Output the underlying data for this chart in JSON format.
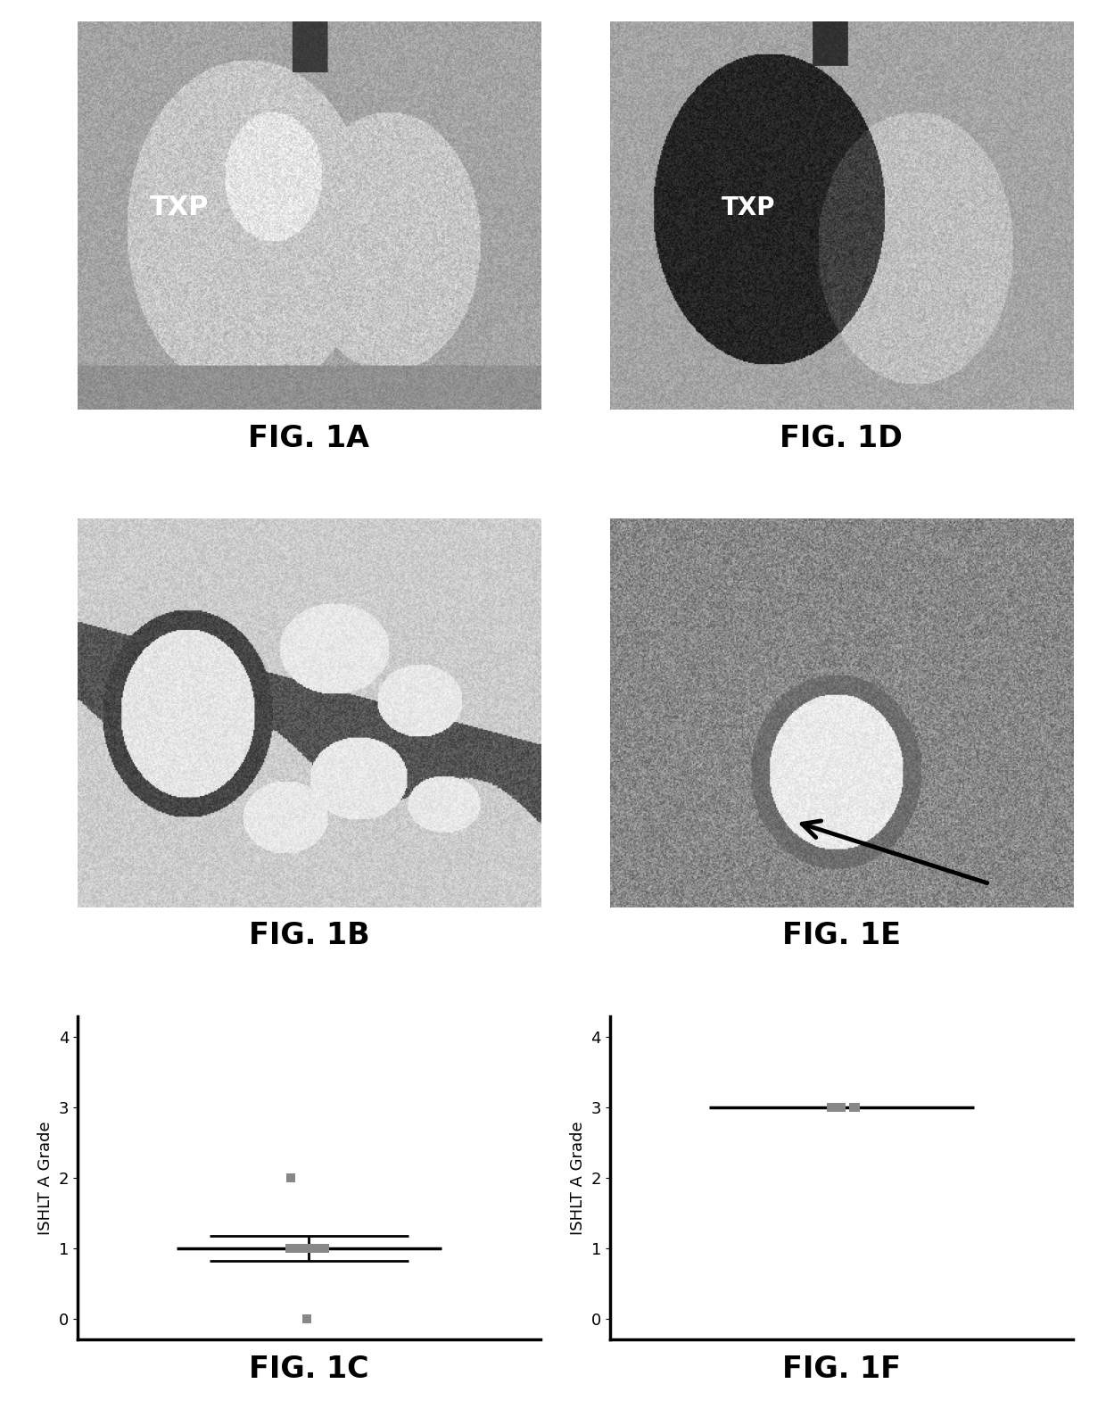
{
  "background_color": "#ffffff",
  "fig_label_fontsize": 24,
  "fig_label_fontweight": "bold",
  "ylabel": "ISHLT A Grade",
  "ylabel_fontsize": 13,
  "yticks": [
    0,
    1,
    2,
    3,
    4
  ],
  "ylim": [
    -0.3,
    4.3
  ],
  "scatter_C": {
    "y": [
      1,
      1,
      1,
      1,
      1,
      1,
      1,
      1,
      2,
      0,
      1
    ],
    "mean": 1.0,
    "sem_upper": 1.18,
    "sem_lower": 0.82,
    "color": "#888888"
  },
  "scatter_F": {
    "y": [
      3,
      3,
      3,
      3,
      3
    ],
    "mean": 3.0,
    "color": "#888888"
  },
  "xlim": [
    0.3,
    1.7
  ],
  "tick_fontsize": 13,
  "line_color": "#000000",
  "line_width": 2.5,
  "scatter_size": 55,
  "scatter_marker": "s",
  "img1a_gray": 175,
  "img1d_gray": 160,
  "img1b_gray": 200,
  "img1e_gray": 140,
  "border_color": "#cccccc"
}
